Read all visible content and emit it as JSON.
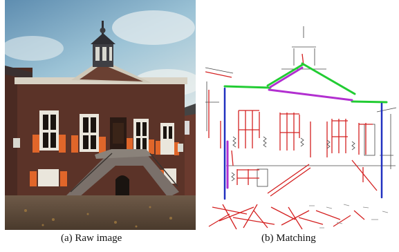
{
  "figure": {
    "subfigures": [
      {
        "id": "a",
        "caption": "(a) Raw image",
        "content": "photo of a brick town hall with stairs, shuttered windows and a small bell tower"
      },
      {
        "id": "b",
        "caption": "(b) Matching",
        "content": "line-segment drawing of the same building with matched lines highlighted"
      }
    ],
    "colors": {
      "sky": "#7fa9c6",
      "brick": "#5b3328",
      "shutter_orange": "#e0662a",
      "line_red": "#d42020",
      "line_green": "#22cc33",
      "line_purple": "#b22fd0",
      "line_blue": "#2030c0",
      "line_dark": "#444444"
    }
  }
}
